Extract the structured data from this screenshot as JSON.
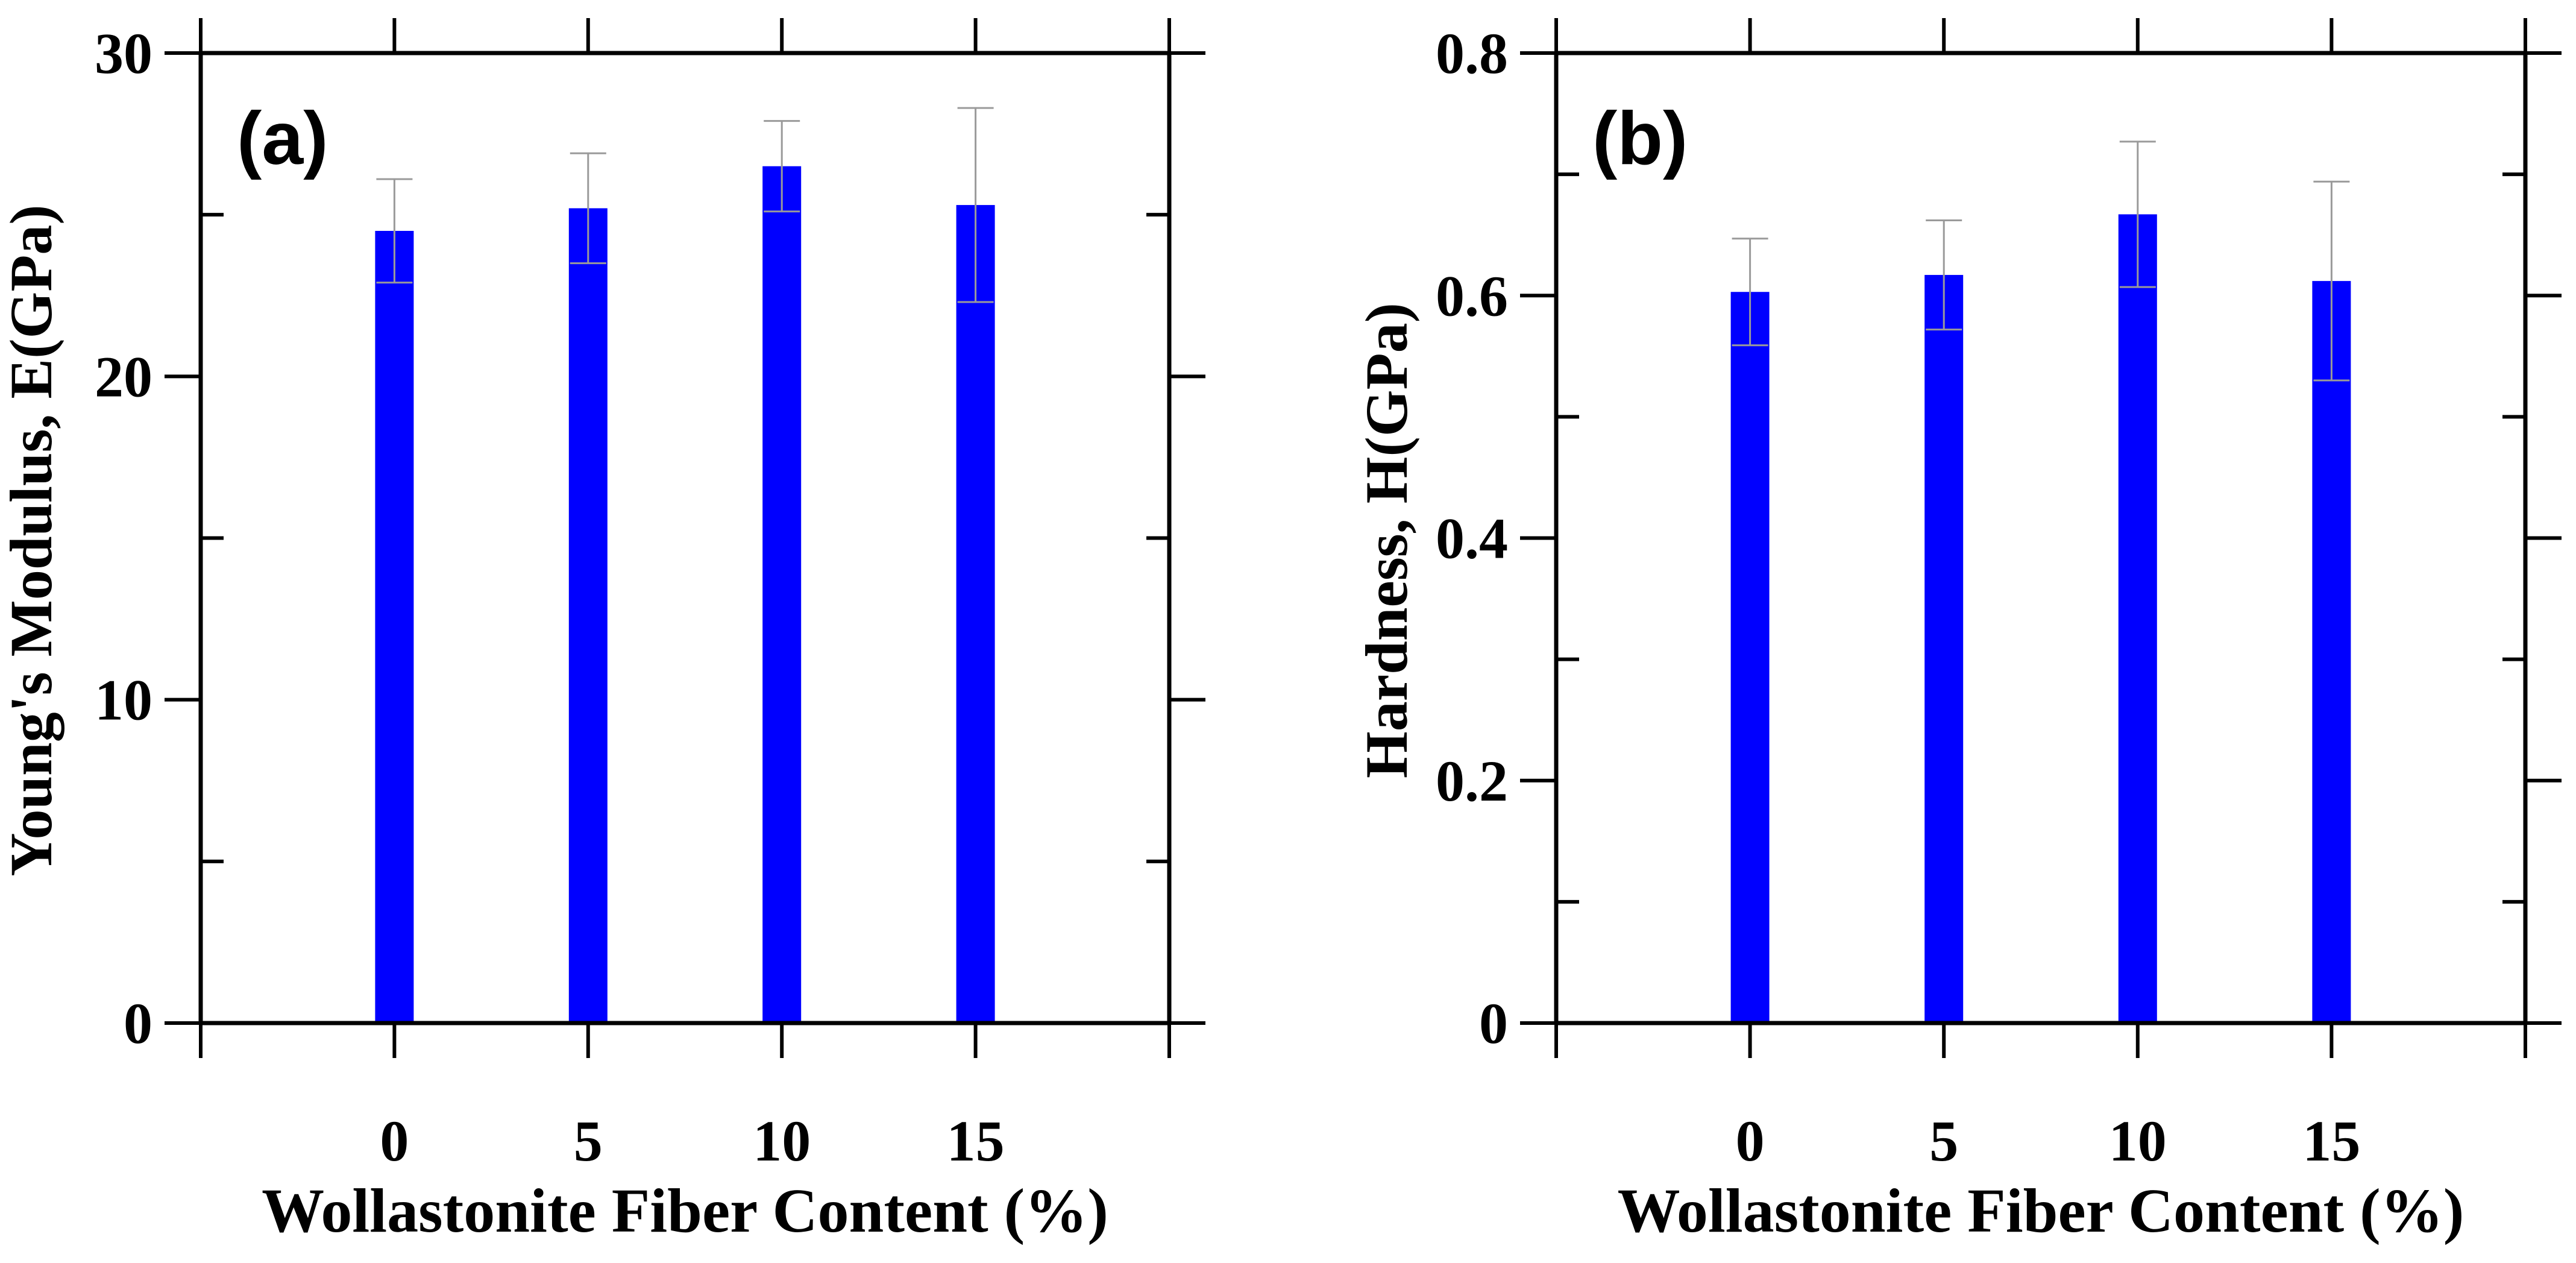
{
  "chart_data": [
    {
      "type": "bar",
      "panel_label": "(a)",
      "categories": [
        "0",
        "5",
        "10",
        "15"
      ],
      "x": [
        0,
        5,
        10,
        15
      ],
      "values": [
        24.5,
        25.2,
        26.5,
        25.3
      ],
      "errors": [
        1.6,
        1.7,
        1.4,
        3.0
      ],
      "xlabel": "Wollastonite Fiber Content (%)",
      "ylabel": "Young's Modulus, E(GPa)",
      "xlim": [
        -5,
        20
      ],
      "ylim": [
        0,
        30
      ],
      "yticks": [
        0,
        10,
        20,
        30
      ],
      "ytick_labels": [
        "0",
        "10",
        "20",
        "30"
      ],
      "y_minor_step": 5,
      "bar_color": "#0000ff",
      "error_color": "#9a9a9a"
    },
    {
      "type": "bar",
      "panel_label": "(b)",
      "categories": [
        "0",
        "5",
        "10",
        "15"
      ],
      "x": [
        0,
        5,
        10,
        15
      ],
      "values": [
        0.603,
        0.617,
        0.667,
        0.612
      ],
      "errors": [
        0.044,
        0.045,
        0.06,
        0.082
      ],
      "xlabel": "Wollastonite Fiber Content (%)",
      "ylabel": "Hardness, H(GPa)",
      "xlim": [
        -5,
        20
      ],
      "ylim": [
        0,
        0.8
      ],
      "yticks": [
        0,
        0.2,
        0.4,
        0.6,
        0.8
      ],
      "ytick_labels": [
        "0",
        "0.2",
        "0.4",
        "0.6",
        "0.8"
      ],
      "y_minor_step": 0.1,
      "bar_color": "#0000ff",
      "error_color": "#9a9a9a"
    }
  ]
}
